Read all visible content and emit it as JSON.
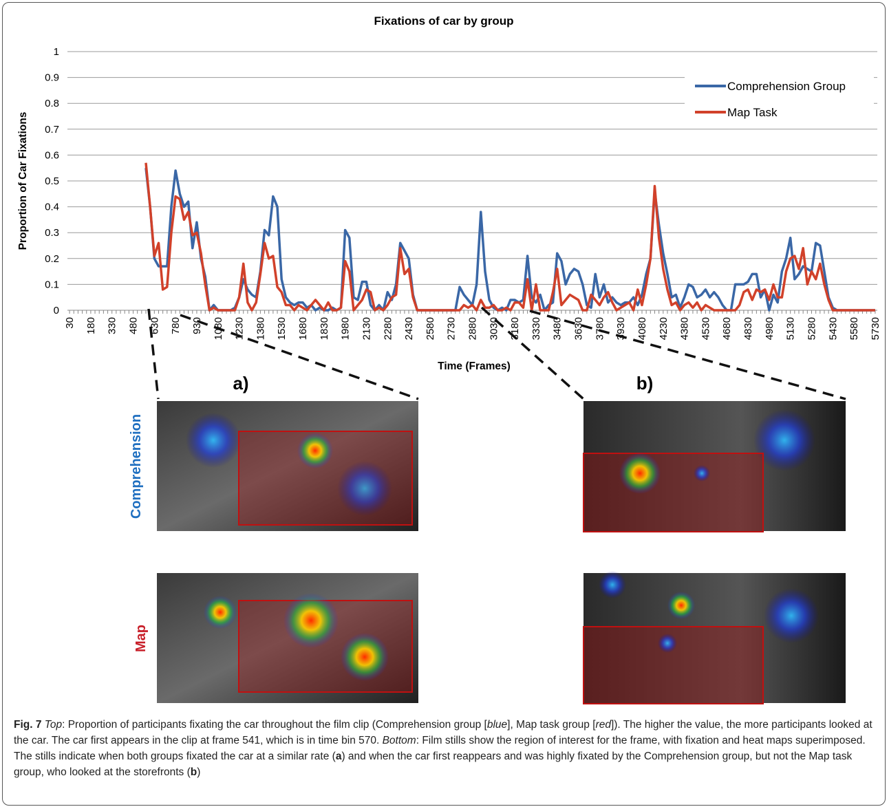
{
  "chart_data": {
    "type": "line",
    "title": "Fixations of car by group",
    "xlabel": "Time (Frames)",
    "ylabel": "Proportion of Car Fixations",
    "x": [
      30,
      60,
      90,
      120,
      150,
      180,
      210,
      240,
      270,
      300,
      330,
      360,
      390,
      420,
      450,
      480,
      510,
      540,
      570,
      600,
      630,
      660,
      690,
      720,
      750,
      780,
      810,
      840,
      870,
      900,
      930,
      960,
      990,
      1020,
      1050,
      1080,
      1110,
      1140,
      1170,
      1200,
      1230,
      1260,
      1290,
      1320,
      1350,
      1380,
      1410,
      1440,
      1470,
      1500,
      1530,
      1560,
      1590,
      1620,
      1650,
      1680,
      1710,
      1740,
      1770,
      1800,
      1830,
      1860,
      1890,
      1920,
      1950,
      1980,
      2010,
      2040,
      2070,
      2100,
      2130,
      2160,
      2190,
      2220,
      2250,
      2280,
      2310,
      2340,
      2370,
      2400,
      2430,
      2460,
      2490,
      2520,
      2550,
      2580,
      2610,
      2640,
      2670,
      2700,
      2730,
      2760,
      2790,
      2820,
      2850,
      2880,
      2910,
      2940,
      2970,
      3000,
      3030,
      3060,
      3090,
      3120,
      3150,
      3180,
      3210,
      3240,
      3270,
      3300,
      3330,
      3360,
      3390,
      3420,
      3450,
      3480,
      3510,
      3540,
      3570,
      3600,
      3630,
      3660,
      3690,
      3720,
      3750,
      3780,
      3810,
      3840,
      3870,
      3900,
      3930,
      3960,
      3990,
      4020,
      4050,
      4080,
      4110,
      4140,
      4170,
      4200,
      4230,
      4260,
      4290,
      4320,
      4350,
      4380,
      4410,
      4440,
      4470,
      4500,
      4530,
      4560,
      4590,
      4620,
      4650,
      4680,
      4710,
      4740,
      4770,
      4800,
      4830,
      4860,
      4890,
      4920,
      4950,
      4980,
      5010,
      5040,
      5070,
      5100,
      5130,
      5160,
      5190,
      5220,
      5250,
      5280,
      5310,
      5340,
      5370,
      5400,
      5430,
      5460,
      5490,
      5520,
      5550,
      5580,
      5610,
      5640,
      5670,
      5700,
      5730
    ],
    "series": [
      {
        "name": "Comprehension Group",
        "color": "#3a67a6",
        "values": [
          null,
          null,
          null,
          null,
          null,
          null,
          null,
          null,
          null,
          null,
          null,
          null,
          null,
          null,
          null,
          null,
          null,
          null,
          0.55,
          0.4,
          0.2,
          0.17,
          0.17,
          0.17,
          0.4,
          0.54,
          0.45,
          0.4,
          0.42,
          0.24,
          0.34,
          0.2,
          0.13,
          0,
          0.02,
          0,
          0,
          0,
          0,
          0.01,
          0.05,
          0.12,
          0.08,
          0.06,
          0.05,
          0.15,
          0.31,
          0.29,
          0.44,
          0.4,
          0.12,
          0.05,
          0.03,
          0.02,
          0.03,
          0.03,
          0.01,
          0.02,
          0,
          0.01,
          0,
          0,
          0.01,
          0,
          0.01,
          0.31,
          0.28,
          0.05,
          0.04,
          0.11,
          0.11,
          0.02,
          0,
          0.02,
          0,
          0.07,
          0.04,
          0.1,
          0.26,
          0.23,
          0.2,
          0.06,
          0,
          0,
          0,
          0,
          0,
          0,
          0,
          0,
          0,
          0,
          0.09,
          0.06,
          0.04,
          0.02,
          0.1,
          0.38,
          0.15,
          0.04,
          0.01,
          0,
          0.01,
          0,
          0.04,
          0.04,
          0.03,
          0.04,
          0.21,
          0.05,
          0.03,
          0.06,
          0,
          0.02,
          0.03,
          0.22,
          0.19,
          0.1,
          0.14,
          0.16,
          0.15,
          0.1,
          0.02,
          0.01,
          0.14,
          0.05,
          0.1,
          0.03,
          0.05,
          0.03,
          0.02,
          0.03,
          0.03,
          0.05,
          0.02,
          0.06,
          0.14,
          0.2,
          0.46,
          0.33,
          0.22,
          0.14,
          0.05,
          0.06,
          0.01,
          0.05,
          0.1,
          0.09,
          0.05,
          0.06,
          0.08,
          0.05,
          0.07,
          0.05,
          0.02,
          0,
          0,
          0.1,
          0.1,
          0.1,
          0.11,
          0.14,
          0.14,
          0.05,
          0.08,
          0,
          0.06,
          0.03,
          0.15,
          0.2,
          0.28,
          0.12,
          0.14,
          0.17,
          0.16,
          0.15,
          0.26,
          0.25,
          0.15,
          0.05,
          0.01,
          0,
          0,
          0,
          0,
          0,
          0,
          0,
          0,
          0,
          0
        ]
      },
      {
        "name": "Map Task",
        "color": "#d1412a",
        "values": [
          null,
          null,
          null,
          null,
          null,
          null,
          null,
          null,
          null,
          null,
          null,
          null,
          null,
          null,
          null,
          null,
          null,
          null,
          0.57,
          0.4,
          0.21,
          0.26,
          0.08,
          0.09,
          0.3,
          0.44,
          0.43,
          0.35,
          0.38,
          0.29,
          0.3,
          0.22,
          0.1,
          0,
          0.01,
          0,
          0,
          0,
          0,
          0,
          0.05,
          0.18,
          0.03,
          0,
          0.03,
          0.14,
          0.26,
          0.2,
          0.21,
          0.09,
          0.07,
          0.02,
          0.02,
          0,
          0.02,
          0.01,
          0,
          0.02,
          0.04,
          0.02,
          0,
          0.03,
          0,
          0,
          0.01,
          0.19,
          0.15,
          0,
          0.02,
          0.04,
          0.08,
          0.07,
          0,
          0.01,
          0,
          0.02,
          0.05,
          0.06,
          0.24,
          0.14,
          0.16,
          0.05,
          0,
          0,
          0,
          0,
          0,
          0,
          0,
          0,
          0,
          0,
          0,
          0.02,
          0.01,
          0.02,
          0,
          0.04,
          0.01,
          0.01,
          0.02,
          0,
          0,
          0.01,
          0,
          0.03,
          0.03,
          0.01,
          0.12,
          0,
          0.1,
          0,
          0,
          0,
          0.07,
          0.16,
          0.02,
          0.04,
          0.06,
          0.05,
          0.04,
          0,
          0,
          0.06,
          0.04,
          0.02,
          0.05,
          0.07,
          0.03,
          0,
          0.01,
          0.02,
          0.03,
          0,
          0.08,
          0.02,
          0.1,
          0.2,
          0.48,
          0.28,
          0.16,
          0.08,
          0.02,
          0.03,
          0,
          0.02,
          0.03,
          0.01,
          0.03,
          0,
          0.02,
          0.01,
          0,
          0,
          0,
          0,
          0,
          0,
          0.02,
          0.07,
          0.08,
          0.04,
          0.08,
          0.07,
          0.08,
          0.04,
          0.1,
          0.05,
          0.05,
          0.15,
          0.2,
          0.21,
          0.16,
          0.24,
          0.1,
          0.15,
          0.12,
          0.18,
          0.1,
          0.04,
          0,
          0,
          0,
          0,
          0,
          0,
          0,
          0,
          0,
          0,
          0
        ]
      }
    ],
    "xlim": [
      15,
      5745
    ],
    "xticks": [
      30,
      180,
      330,
      480,
      630,
      780,
      930,
      1080,
      1230,
      1380,
      1530,
      1680,
      1830,
      1980,
      2130,
      2280,
      2430,
      2580,
      2730,
      2880,
      3030,
      3180,
      3330,
      3480,
      3630,
      3780,
      3930,
      4080,
      4230,
      4380,
      4530,
      4680,
      4830,
      4980,
      5130,
      5280,
      5430,
      5580,
      5730
    ],
    "ylim": [
      0,
      1
    ],
    "yticks": [
      0,
      0.1,
      0.2,
      0.3,
      0.4,
      0.5,
      0.6,
      0.7,
      0.8,
      0.9,
      1
    ],
    "grid": true,
    "legend": "upper right"
  },
  "panels": {
    "a": "a)",
    "b": "b)",
    "rows": [
      "Comprehension",
      "Map"
    ]
  },
  "caption": [
    "Fig. 7",
    "Top",
    ": Proportion of participants fixating the car throughout the film clip (Comprehension group [",
    "blue",
    "], Map task group [",
    "red",
    "]). The higher the value, the more participants looked at the car. The car first appears in the clip at frame 541, which is in time bin 570. ",
    "Bottom",
    ": Film stills show the region of interest for the frame, with fixation and heat maps superimposed. The stills indicate when both groups fixated the car at a similar rate (",
    "a",
    ") and when the car first reappears and was highly fixated by the Comprehension group, but not the Map task group, who looked at the storefronts (",
    "b",
    ")"
  ]
}
